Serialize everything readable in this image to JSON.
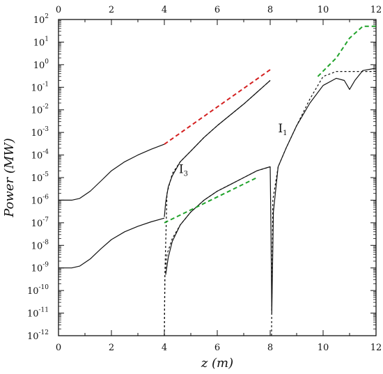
{
  "chart_data": {
    "type": "line",
    "title": "",
    "xlabel": "z (m)",
    "ylabel": "Power (MW)",
    "xlim": [
      0,
      12
    ],
    "ylim": [
      1e-12,
      100
    ],
    "yscale": "log",
    "grid": false,
    "x_ticks": [
      "0",
      "2",
      "4",
      "6",
      "8",
      "10",
      "12"
    ],
    "x_top_ticks": [
      "0",
      "2",
      "4",
      "6",
      "8",
      "10",
      "12"
    ],
    "y_ticks": [
      {
        "base": "10",
        "exp": "-12"
      },
      {
        "base": "10",
        "exp": "-11"
      },
      {
        "base": "10",
        "exp": "-10"
      },
      {
        "base": "10",
        "exp": "-9"
      },
      {
        "base": "10",
        "exp": "-8"
      },
      {
        "base": "10",
        "exp": "-7"
      },
      {
        "base": "10",
        "exp": "-6"
      },
      {
        "base": "10",
        "exp": "-5"
      },
      {
        "base": "10",
        "exp": "-4"
      },
      {
        "base": "10",
        "exp": "-3"
      },
      {
        "base": "10",
        "exp": "-2"
      },
      {
        "base": "10",
        "exp": "-1"
      },
      {
        "base": "10",
        "exp": "0"
      },
      {
        "base": "10",
        "exp": "1"
      },
      {
        "base": "10",
        "exp": "2"
      }
    ],
    "annotations": [
      {
        "base": "I",
        "sub": "1",
        "x": 8.3,
        "y": 0.001
      },
      {
        "base": "I",
        "sub": "3",
        "x": 4.55,
        "y": 1.6e-05
      }
    ],
    "series": [
      {
        "color": "#111111",
        "style": "solid",
        "points": [
          [
            0,
            1e-06
          ],
          [
            0.5,
            1e-06
          ],
          [
            0.8,
            1.2e-06
          ],
          [
            1.2,
            2.5e-06
          ],
          [
            1.6,
            7e-06
          ],
          [
            2.0,
            2e-05
          ],
          [
            2.5,
            5e-05
          ],
          [
            3.0,
            0.0001
          ],
          [
            3.5,
            0.00018
          ],
          [
            4.0,
            0.0003
          ]
        ]
      },
      {
        "color": "#111111",
        "style": "solid",
        "points": [
          [
            4.0,
            1.8e-07
          ],
          [
            4.05,
            8e-07
          ],
          [
            4.15,
            4e-06
          ],
          [
            4.3,
            1.2e-05
          ],
          [
            4.6,
            5e-05
          ],
          [
            5.0,
            0.00015
          ],
          [
            5.5,
            0.0006
          ],
          [
            6.0,
            0.002
          ],
          [
            6.5,
            0.006
          ],
          [
            7.0,
            0.018
          ],
          [
            7.5,
            0.06
          ],
          [
            8.0,
            0.2
          ]
        ]
      },
      {
        "color": "#111111",
        "style": "solid",
        "points": [
          [
            0,
            1e-09
          ],
          [
            0.5,
            1e-09
          ],
          [
            0.8,
            1.2e-09
          ],
          [
            1.2,
            2.5e-09
          ],
          [
            1.6,
            7e-09
          ],
          [
            2.0,
            1.8e-08
          ],
          [
            2.5,
            4e-08
          ],
          [
            3.0,
            7e-08
          ],
          [
            3.5,
            1.1e-07
          ],
          [
            4.0,
            1.6e-07
          ]
        ]
      },
      {
        "color": "#111111",
        "style": "solid",
        "points": [
          [
            4.05,
            5e-10
          ],
          [
            4.15,
            3e-09
          ],
          [
            4.3,
            1.5e-08
          ],
          [
            4.6,
            8e-08
          ],
          [
            5.0,
            3e-07
          ],
          [
            5.5,
            1e-06
          ],
          [
            6.0,
            2.5e-06
          ],
          [
            6.5,
            5e-06
          ],
          [
            7.0,
            1e-05
          ],
          [
            7.5,
            2e-05
          ],
          [
            7.9,
            2.8e-05
          ],
          [
            8.0,
            3e-05
          ],
          [
            8.03,
            5e-08
          ],
          [
            8.06,
            1e-11
          ],
          [
            8.12,
            3e-07
          ],
          [
            8.3,
            3e-05
          ],
          [
            8.6,
            0.0002
          ],
          [
            9.0,
            0.002
          ],
          [
            9.5,
            0.02
          ],
          [
            10.0,
            0.12
          ],
          [
            10.5,
            0.25
          ],
          [
            10.8,
            0.2
          ],
          [
            11.0,
            0.08
          ],
          [
            11.2,
            0.2
          ],
          [
            11.5,
            0.55
          ],
          [
            12.0,
            0.7
          ]
        ]
      },
      {
        "color": "#111111",
        "style": "dashed",
        "points": [
          [
            4.0,
            1e-12
          ],
          [
            4.02,
            5e-10
          ],
          [
            4.1,
            2e-06
          ],
          [
            4.3,
            1.5e-05
          ],
          [
            4.6,
            5e-05
          ],
          [
            5.0,
            0.00015
          ],
          [
            5.5,
            0.0006
          ],
          [
            6.0,
            0.002
          ],
          [
            6.5,
            0.006
          ],
          [
            7.0,
            0.018
          ],
          [
            7.5,
            0.06
          ],
          [
            8.0,
            0.2
          ]
        ]
      },
      {
        "color": "#111111",
        "style": "dashed",
        "points": [
          [
            4.0,
            1e-12
          ],
          [
            4.02,
            5e-10
          ],
          [
            4.1,
            4e-09
          ],
          [
            4.3,
            2e-08
          ],
          [
            4.6,
            8e-08
          ],
          [
            5.0,
            3e-07
          ],
          [
            5.5,
            1e-06
          ],
          [
            6.0,
            2.5e-06
          ],
          [
            6.5,
            5e-06
          ],
          [
            7.0,
            1e-05
          ],
          [
            7.5,
            2e-05
          ],
          [
            8.0,
            3e-05
          ]
        ]
      },
      {
        "color": "#111111",
        "style": "dashed",
        "points": [
          [
            8.05,
            1e-12
          ],
          [
            8.1,
            1e-06
          ],
          [
            8.3,
            3e-05
          ],
          [
            8.6,
            0.0002
          ],
          [
            9.0,
            0.002
          ],
          [
            9.5,
            0.03
          ],
          [
            10.0,
            0.3
          ],
          [
            10.5,
            0.5
          ],
          [
            11.0,
            0.5
          ],
          [
            11.5,
            0.5
          ],
          [
            12.0,
            0.5
          ]
        ]
      },
      {
        "color": "#d42020",
        "style": "dashed",
        "points": [
          [
            4.0,
            0.0003
          ],
          [
            8.0,
            0.6
          ]
        ]
      },
      {
        "color": "#21a32b",
        "style": "dashed",
        "points": [
          [
            4.0,
            1e-07
          ],
          [
            7.5,
            1e-05
          ]
        ]
      },
      {
        "color": "#21a32b",
        "style": "dashed",
        "points": [
          [
            9.8,
            0.3
          ],
          [
            10.5,
            2
          ],
          [
            11.0,
            15
          ],
          [
            11.5,
            50
          ],
          [
            12.0,
            50
          ]
        ]
      }
    ]
  }
}
